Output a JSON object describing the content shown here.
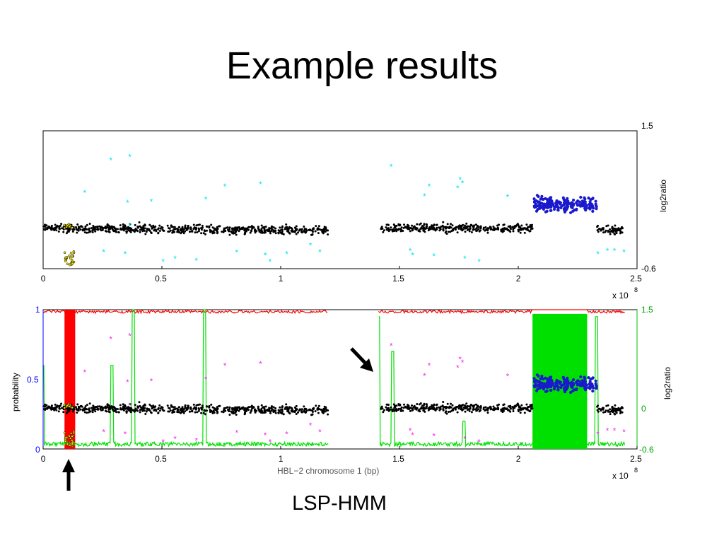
{
  "slide": {
    "title": "Example results",
    "caption": "LSP-HMM"
  },
  "colors": {
    "data_points": "#000000",
    "outlier_top": "#00e5ee",
    "outlier_bottom": "#ee30ee",
    "high_segment": "#1a1acc",
    "low_segment": "#f2e200",
    "red_state": "#ff0000",
    "green_state": "#00e000"
  },
  "chart_data": [
    {
      "type": "scatter",
      "title": "",
      "xlabel": "",
      "xlim": [
        0,
        2.5
      ],
      "x_ticks": [
        "0",
        "0.5",
        "1",
        "1.5",
        "2",
        "2.5"
      ],
      "x_multiplier": "x 10",
      "x_multiplier_exp": "8",
      "ylabel_right": "log2ratio",
      "ylim_right": [
        -0.6,
        1.5
      ],
      "y_ticks_right": [
        "1.5",
        "-0.6"
      ],
      "series": [
        {
          "color_role": "black",
          "segments": [
            {
              "x_range": [
                0.0,
                1.2
              ],
              "y_mean": 0.02
            },
            {
              "x_range": [
                1.42,
                2.06
              ],
              "y_mean": 0.03
            },
            {
              "x_range": [
                2.33,
                2.44
              ],
              "y_mean": 0.0
            }
          ]
        },
        {
          "color_role": "blue",
          "segments": [
            {
              "x_range": [
                2.06,
                2.33
              ],
              "y_mean": 0.35
            }
          ]
        },
        {
          "color_role": "yellow",
          "segments": [
            {
              "x_range": [
                0.09,
                0.13
              ],
              "y_mean": -0.35
            }
          ]
        }
      ]
    },
    {
      "type": "line",
      "title": "",
      "xlabel": "HBL−2 chromosome 1 (bp)",
      "xlim": [
        0,
        2.5
      ],
      "x_ticks": [
        "0",
        "0.5",
        "1",
        "1.5",
        "2",
        "2.5"
      ],
      "x_multiplier": "x 10",
      "x_multiplier_exp": "8",
      "ylabel_left": "probability",
      "ylim_left": [
        0,
        1
      ],
      "y_ticks_left": [
        "0",
        "0.5",
        "1"
      ],
      "ylabel_right": "log2ratio",
      "ylim_right": [
        -0.6,
        1.5
      ],
      "y_ticks_right": [
        "-0.6",
        "0",
        "1.5"
      ],
      "series": [
        {
          "color_role": "red",
          "description_free": true,
          "high_x_range": [
            0.09,
            0.13
          ]
        },
        {
          "color_role": "green",
          "high_x_range": [
            2.06,
            2.29
          ]
        }
      ]
    }
  ]
}
